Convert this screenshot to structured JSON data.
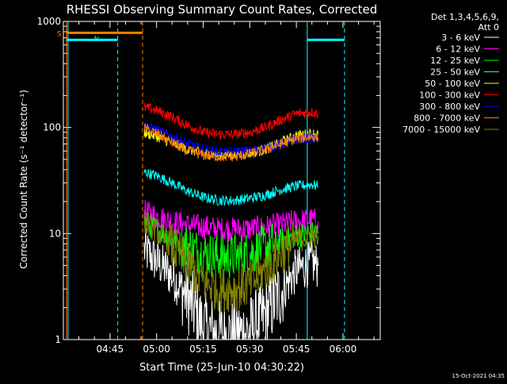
{
  "chart_data": {
    "type": "line",
    "title": "RHESSI Observing Summary Count Rates, Corrected",
    "xlabel": "Start Time (25-Jun-10 04:30:22)",
    "ylabel": "Corrected Count Rate (s⁻¹ detector⁻¹)",
    "y_scale": "log",
    "ylim": [
      1,
      1000
    ],
    "xlim": [
      "04:30",
      "06:12"
    ],
    "x_ticks": [
      "04:45",
      "05:00",
      "05:15",
      "05:30",
      "05:45",
      "06:00"
    ],
    "y_ticks": [
      "1",
      "10",
      "100",
      "1000"
    ],
    "legend_header": [
      "Det 1,3,4,5,6,9,",
      "Att 0"
    ],
    "legend_position": "top-right, outside plot",
    "timestamp": "15-Oct-2021 04:35",
    "annotations": [
      {
        "label": "S",
        "color": "#ff8000"
      },
      {
        "label": "N",
        "color": "#00ffff"
      }
    ],
    "state_bars": [
      {
        "label": "S",
        "color": "#ff8000",
        "level": 780,
        "start": "04:31",
        "end": "04:55:30"
      },
      {
        "label": "N",
        "color": "#00ffff",
        "level": 670,
        "start": "04:31",
        "end": "04:47:30"
      },
      {
        "label": "",
        "color": "#00ffff",
        "level": 670,
        "start": "05:48:30",
        "end": "06:00:30"
      }
    ],
    "vlines": [
      {
        "t": "04:31",
        "color": "#ff8000",
        "dashed": false
      },
      {
        "t": "04:31:30",
        "color": "#00ffff",
        "dashed": false
      },
      {
        "t": "04:47:30",
        "color": "#00ffff",
        "dashed": true
      },
      {
        "t": "04:55:30",
        "color": "#ff8000",
        "dashed": true
      },
      {
        "t": "05:48:30",
        "color": "#00ffff",
        "dashed": false
      },
      {
        "t": "06:00:30",
        "color": "#00ffff",
        "dashed": true
      }
    ],
    "series": [
      {
        "name": "3 - 6 keV",
        "color": "#ffffff",
        "x": [
          "04:56",
          "05:00",
          "05:05",
          "05:10",
          "05:15",
          "05:20",
          "05:25",
          "05:30",
          "05:35",
          "05:40",
          "05:45",
          "05:50",
          "05:52"
        ],
        "y": [
          7,
          5.5,
          4,
          2.5,
          1.3,
          1.1,
          1.1,
          1.2,
          1.7,
          2.8,
          4.5,
          5.3,
          5
        ]
      },
      {
        "name": "6 - 12 keV",
        "color": "#ff00ff",
        "x": [
          "04:56",
          "05:00",
          "05:05",
          "05:10",
          "05:15",
          "05:20",
          "05:25",
          "05:30",
          "05:35",
          "05:40",
          "05:45",
          "05:50",
          "05:52"
        ],
        "y": [
          16,
          14.5,
          13,
          12,
          11.5,
          11,
          11,
          11,
          11.5,
          12,
          13,
          13.5,
          13
        ]
      },
      {
        "name": "12 - 25 keV",
        "color": "#00ff00",
        "x": [
          "04:56",
          "05:00",
          "05:05",
          "05:10",
          "05:15",
          "05:20",
          "05:25",
          "05:30",
          "05:35",
          "05:40",
          "05:45",
          "05:50",
          "05:52"
        ],
        "y": [
          13,
          11,
          9,
          7.5,
          6.5,
          6,
          6,
          6.5,
          7.5,
          8.5,
          9.5,
          10,
          10
        ]
      },
      {
        "name": "25 - 50 keV",
        "color": "#00ffff",
        "x": [
          "04:56",
          "05:00",
          "05:05",
          "05:10",
          "05:15",
          "05:20",
          "05:25",
          "05:30",
          "05:35",
          "05:40",
          "05:45",
          "05:50",
          "05:52"
        ],
        "y": [
          38,
          35,
          30,
          25,
          22,
          20.5,
          20.5,
          21.5,
          23,
          26,
          28,
          29,
          28
        ]
      },
      {
        "name": "50 - 100 keV",
        "color": "#ffff00",
        "x": [
          "04:56",
          "05:00",
          "05:05",
          "05:10",
          "05:15",
          "05:20",
          "05:25",
          "05:30",
          "05:35",
          "05:40",
          "05:45",
          "05:50",
          "05:52"
        ],
        "y": [
          90,
          82,
          72,
          62,
          57,
          55,
          55,
          57,
          62,
          72,
          84,
          88,
          86
        ]
      },
      {
        "name": "100 - 300 keV",
        "color": "#ff0000",
        "x": [
          "04:56",
          "05:00",
          "05:05",
          "05:10",
          "05:15",
          "05:20",
          "05:25",
          "05:30",
          "05:35",
          "05:40",
          "05:45",
          "05:50",
          "05:52"
        ],
        "y": [
          155,
          145,
          125,
          105,
          90,
          86,
          86,
          90,
          100,
          118,
          135,
          140,
          135
        ]
      },
      {
        "name": "300 - 800 keV",
        "color": "#0000ff",
        "x": [
          "04:56",
          "05:00",
          "05:05",
          "05:10",
          "05:15",
          "05:20",
          "05:25",
          "05:30",
          "05:35",
          "05:40",
          "05:45",
          "05:50",
          "05:52"
        ],
        "y": [
          105,
          95,
          82,
          70,
          62,
          59,
          59,
          60,
          64,
          70,
          78,
          80,
          79
        ]
      },
      {
        "name": "800 - 7000 keV",
        "color": "#ff8000",
        "x": [
          "04:56",
          "05:00",
          "05:05",
          "05:10",
          "05:15",
          "05:20",
          "05:25",
          "05:30",
          "05:35",
          "05:40",
          "05:45",
          "05:50",
          "05:52"
        ],
        "y": [
          98,
          88,
          72,
          60,
          55,
          53,
          53,
          56,
          62,
          70,
          78,
          82,
          80
        ]
      },
      {
        "name": "7000 - 15000 keV",
        "color": "#808000",
        "x": [
          "04:56",
          "05:00",
          "05:05",
          "05:10",
          "05:15",
          "05:20",
          "05:25",
          "05:30",
          "05:35",
          "05:40",
          "05:45",
          "05:50",
          "05:52"
        ],
        "y": [
          13,
          10.5,
          7.5,
          5,
          3.5,
          3,
          3,
          3.3,
          4.5,
          6.5,
          8.5,
          9.5,
          9.5
        ]
      }
    ]
  }
}
